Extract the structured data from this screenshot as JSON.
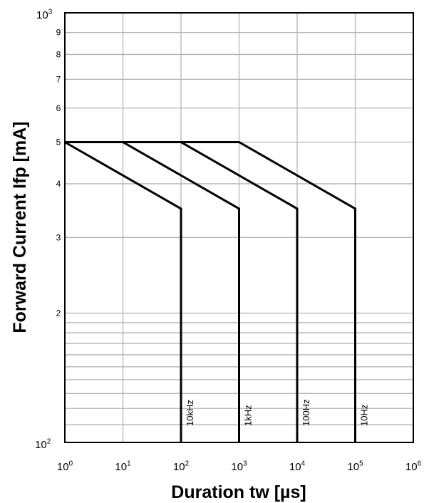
{
  "chart_data": {
    "type": "line",
    "xlabel": "Duration tw [µs]",
    "ylabel": "Forward Current Ifp [mA]",
    "x_scale": "log",
    "y_scale": "log",
    "xlim": [
      1,
      1000000
    ],
    "ylim": [
      100,
      1000
    ],
    "grid": true,
    "x_ticks": [
      {
        "base": "10",
        "exp": "0"
      },
      {
        "base": "10",
        "exp": "1"
      },
      {
        "base": "10",
        "exp": "2"
      },
      {
        "base": "10",
        "exp": "3"
      },
      {
        "base": "10",
        "exp": "4"
      },
      {
        "base": "10",
        "exp": "5"
      },
      {
        "base": "10",
        "exp": "6"
      }
    ],
    "y_ticks": {
      "min": {
        "base": "10",
        "exp": "2"
      },
      "max": {
        "base": "10",
        "exp": "3"
      },
      "minor": [
        "2",
        "3",
        "4",
        "5",
        "6",
        "7",
        "8",
        "9"
      ]
    },
    "series": [
      {
        "name": "10kHz",
        "x": [
          1,
          100,
          100
        ],
        "y": [
          500,
          350,
          100
        ]
      },
      {
        "name": "1kHz",
        "x": [
          1,
          10,
          1000,
          1000
        ],
        "y": [
          500,
          500,
          350,
          100
        ]
      },
      {
        "name": "100Hz",
        "x": [
          1,
          100,
          10000,
          10000
        ],
        "y": [
          500,
          500,
          350,
          100
        ]
      },
      {
        "name": "10Hz",
        "x": [
          1,
          1000,
          100000,
          100000
        ],
        "y": [
          500,
          500,
          350,
          100
        ]
      }
    ]
  }
}
